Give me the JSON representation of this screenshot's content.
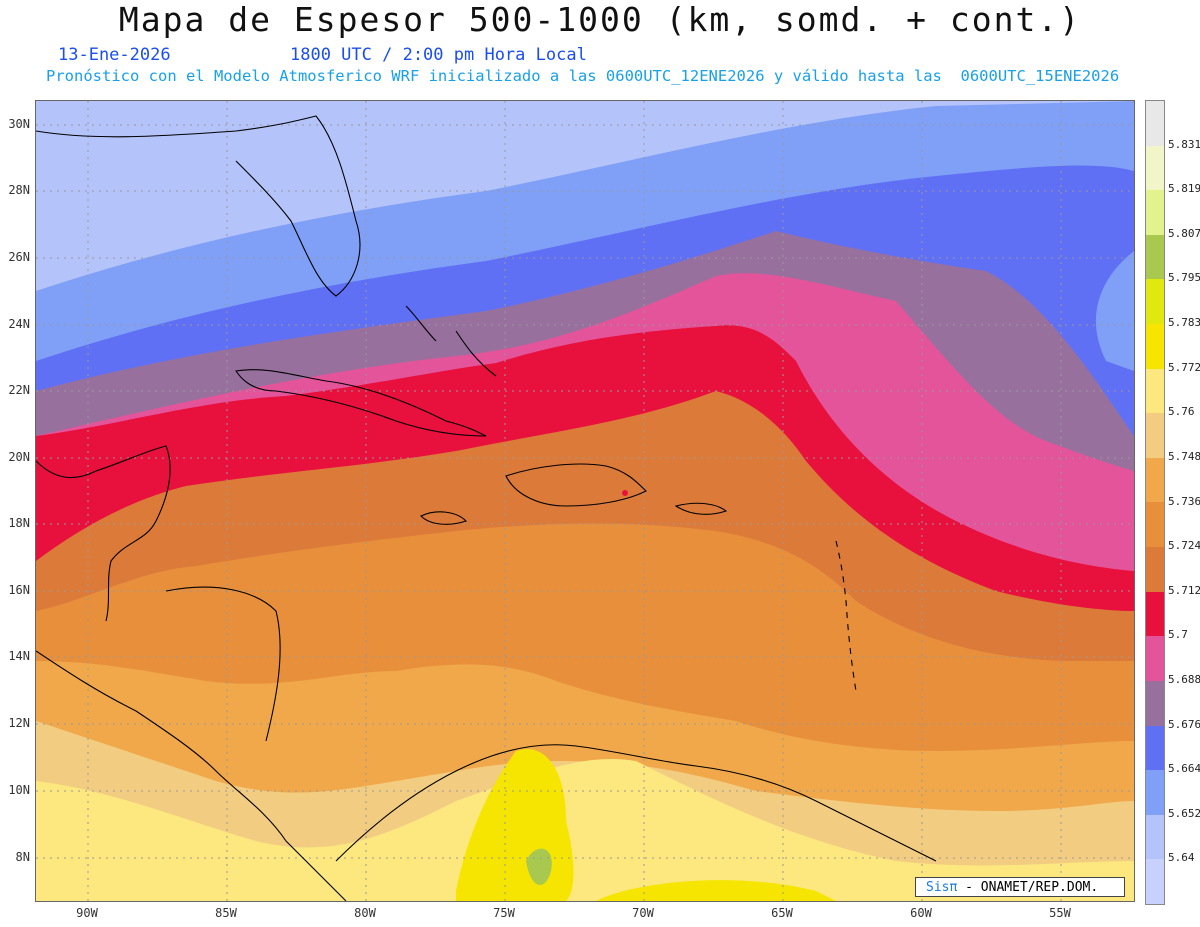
{
  "header": {
    "title": "Mapa de Espesor 500-1000 (km, somd. + cont.)",
    "date": "13-Ene-2026",
    "time": "1800 UTC / 2:00 pm Hora Local",
    "forecast": "Pronóstico con el Modelo Atmosferico WRF inicializado a las 0600UTC_12ENE2026 y válido hasta las  0600UTC_15ENE2026"
  },
  "axes": {
    "lat_labels": [
      "30N",
      "28N",
      "26N",
      "24N",
      "22N",
      "20N",
      "18N",
      "16N",
      "14N",
      "12N",
      "10N",
      "8N"
    ],
    "lon_labels": [
      "90W",
      "85W",
      "80W",
      "75W",
      "70W",
      "65W",
      "60W",
      "55W"
    ]
  },
  "colorbar": {
    "labels": [
      "5.831",
      "5.819",
      "5.807",
      "5.795",
      "5.783",
      "5.772",
      "5.76",
      "5.748",
      "5.736",
      "5.724",
      "5.712",
      "5.7",
      "5.688",
      "5.676",
      "5.664",
      "5.652",
      "5.64"
    ],
    "colors": [
      "#e8e8e8",
      "#f2f5c8",
      "#e2f28c",
      "#a8c850",
      "#e0e810",
      "#f5e500",
      "#fde880",
      "#f2cc80",
      "#f0a84a",
      "#e88f3c",
      "#dc7a3a",
      "#e8103c",
      "#e4549a",
      "#98709e",
      "#6070f5",
      "#80a0f8",
      "#b4c4fa",
      "#c8d0fc"
    ]
  },
  "credit": {
    "brand": "Sisπ",
    "text": " - ONAMET/REP.DOM."
  },
  "map_colors": {
    "ocean_north": "#b4c4fa",
    "band_blue": "#80a0f8",
    "band_dark_blue": "#6070f5",
    "band_purple": "#98709e",
    "band_pink": "#e4549a",
    "band_red": "#e8103c",
    "band_orange_dark": "#dc7a3a",
    "band_orange": "#e88f3c",
    "band_orange_light": "#f0a84a",
    "band_tan": "#f2cc80",
    "band_yellow_light": "#fde880",
    "band_yellow": "#f5e500"
  }
}
